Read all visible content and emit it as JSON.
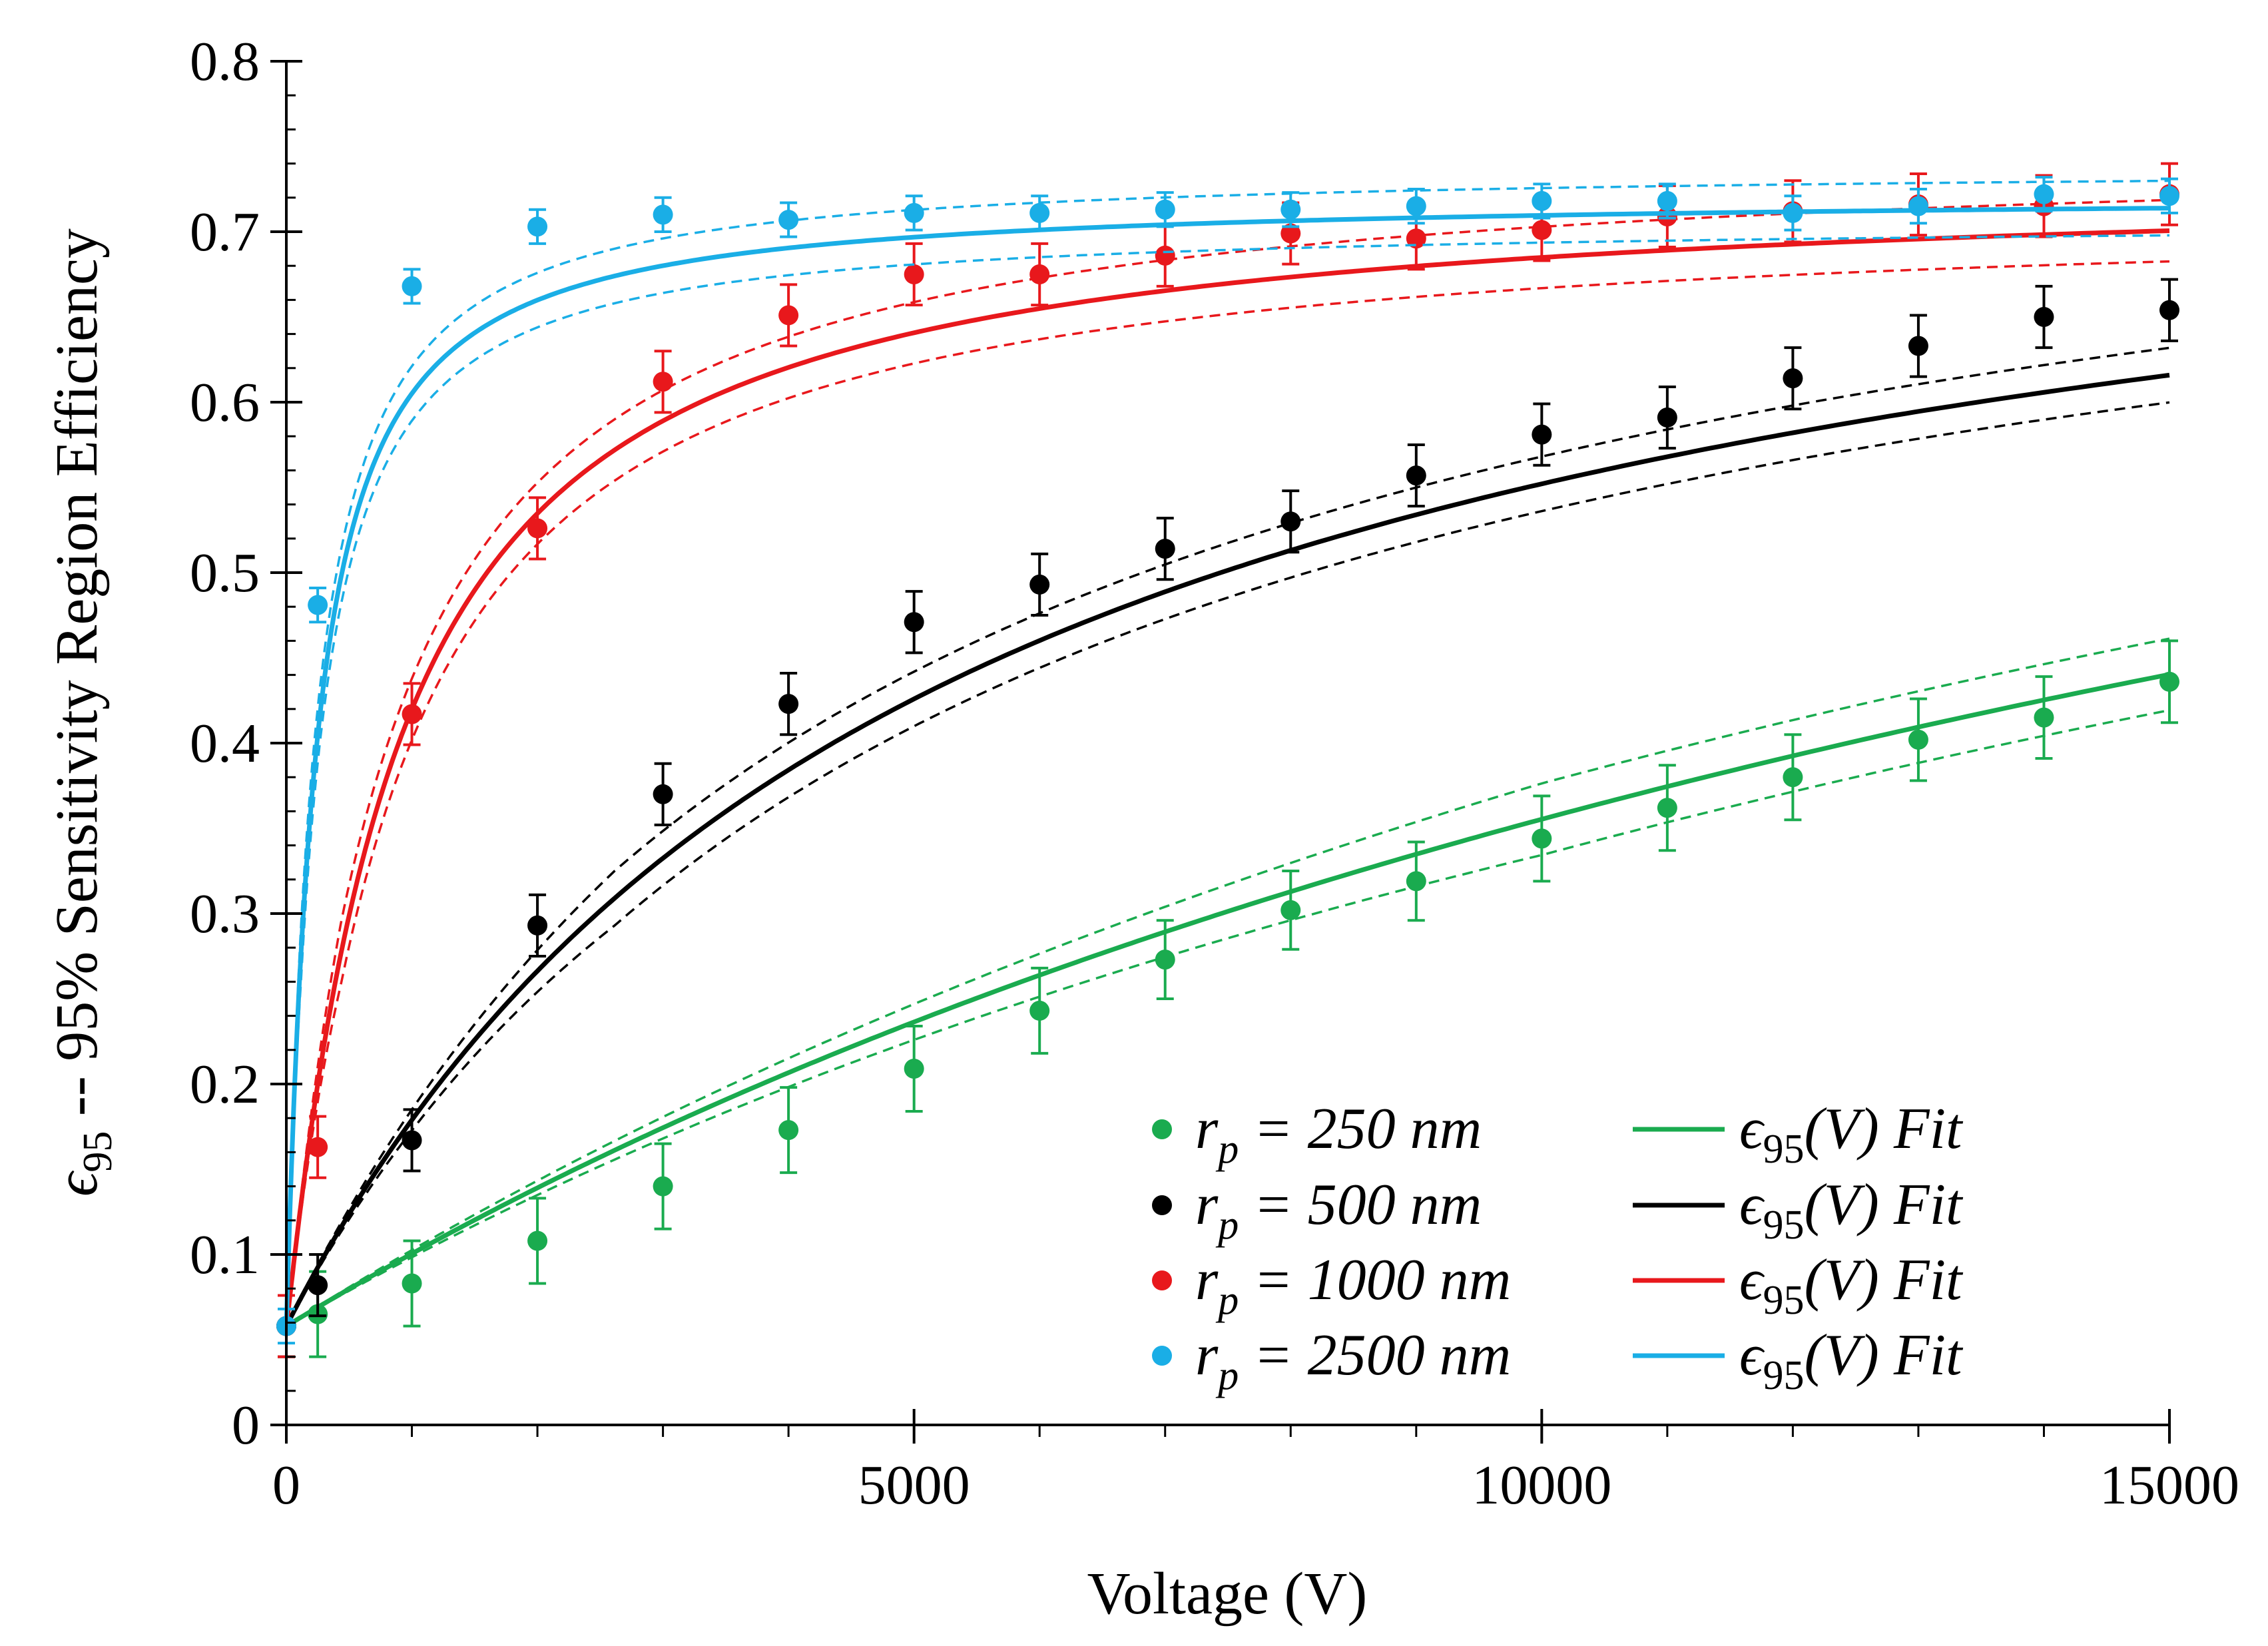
{
  "chart_data": {
    "type": "scatter",
    "title": "",
    "xlabel": "Voltage (V)",
    "ylabel_prefix": "ϵ",
    "ylabel_sub": "95",
    "ylabel_rest": " -- 95% Sensitivity Region Efficiency",
    "xlim": [
      0,
      15000
    ],
    "ylim": [
      0,
      0.8
    ],
    "x_major_ticks": [
      0,
      5000,
      10000,
      15000
    ],
    "x_tick_labels": [
      "0",
      "5000",
      "10000",
      "15000"
    ],
    "x_minor_step": 1000,
    "y_major_ticks": [
      0,
      0.1,
      0.2,
      0.3,
      0.4,
      0.5,
      0.6,
      0.7,
      0.8
    ],
    "y_tick_labels": [
      "0",
      "0.1",
      "0.2",
      "0.3",
      "0.4",
      "0.5",
      "0.6",
      "0.7",
      "0.8"
    ],
    "y_minor_step": 0.02,
    "legend_position": "bottom-right",
    "x": [
      0,
      250,
      1000,
      2000,
      3000,
      4000,
      5000,
      6000,
      7000,
      8000,
      9000,
      10000,
      11000,
      12000,
      13000,
      14000,
      15000
    ],
    "series": [
      {
        "name": "r_p = 250 nm",
        "marker_label": "r",
        "marker_sub": "p",
        "marker_rest": " = 250 nm",
        "fit_label": "ϵ",
        "fit_sub": "95",
        "fit_rest": "(V) Fit",
        "color": "#1aab4f",
        "values": [
          0.058,
          0.065,
          0.083,
          0.108,
          0.14,
          0.173,
          0.209,
          0.243,
          0.273,
          0.302,
          0.319,
          0.344,
          0.362,
          0.38,
          0.402,
          0.415,
          0.436
        ],
        "errors": [
          0.018,
          0.025,
          0.025,
          0.025,
          0.025,
          0.025,
          0.025,
          0.025,
          0.023,
          0.023,
          0.023,
          0.025,
          0.025,
          0.025,
          0.024,
          0.024,
          0.024
        ],
        "fit": {
          "a": 0.058,
          "ymax": 0.95,
          "v0": 20000,
          "n": 1.0
        },
        "fit_band": 0.021
      },
      {
        "name": "r_p = 500 nm",
        "marker_label": "r",
        "marker_sub": "p",
        "marker_rest": " = 500 nm",
        "fit_label": "ϵ",
        "fit_sub": "95",
        "fit_rest": "(V) Fit",
        "color": "#000000",
        "values": [
          0.058,
          0.082,
          0.167,
          0.293,
          0.37,
          0.423,
          0.471,
          0.493,
          0.514,
          0.53,
          0.557,
          0.581,
          0.591,
          0.614,
          0.633,
          0.65,
          0.654
        ],
        "errors": [
          0.018,
          0.018,
          0.018,
          0.018,
          0.018,
          0.018,
          0.018,
          0.018,
          0.018,
          0.018,
          0.018,
          0.018,
          0.018,
          0.018,
          0.018,
          0.018,
          0.018
        ],
        "fit": {
          "a": 0.058,
          "ymax": 0.81,
          "v0": 5220,
          "n": 1.0
        },
        "fit_band": 0.016
      },
      {
        "name": "r_p = 1000 nm",
        "marker_label": "r",
        "marker_sub": "p",
        "marker_rest": " = 1000 nm",
        "fit_label": "ϵ",
        "fit_sub": "95",
        "fit_rest": "(V) Fit",
        "color": "#e8181c",
        "values": [
          0.058,
          0.163,
          0.417,
          0.526,
          0.612,
          0.651,
          0.675,
          0.675,
          0.686,
          0.699,
          0.696,
          0.701,
          0.709,
          0.712,
          0.716,
          0.715,
          0.722
        ],
        "errors": [
          0.018,
          0.018,
          0.018,
          0.018,
          0.018,
          0.018,
          0.018,
          0.018,
          0.018,
          0.018,
          0.018,
          0.018,
          0.018,
          0.018,
          0.018,
          0.018,
          0.018
        ],
        "fit": {
          "a": 0.058,
          "ymax": 0.732,
          "v0": 870,
          "n": 1.06
        },
        "fit_band": 0.018
      },
      {
        "name": "r_p = 2500 nm",
        "marker_label": "r",
        "marker_sub": "p",
        "marker_rest": " = 2500 nm",
        "fit_label": "ϵ",
        "fit_sub": "95",
        "fit_rest": "(V) Fit",
        "color": "#1aaee6",
        "values": [
          0.058,
          0.481,
          0.668,
          0.703,
          0.71,
          0.707,
          0.711,
          0.711,
          0.713,
          0.713,
          0.715,
          0.718,
          0.718,
          0.711,
          0.715,
          0.722,
          0.721
        ],
        "errors": [
          0.01,
          0.01,
          0.01,
          0.01,
          0.01,
          0.01,
          0.01,
          0.01,
          0.01,
          0.01,
          0.01,
          0.01,
          0.01,
          0.01,
          0.01,
          0.01,
          0.01
        ],
        "fit": {
          "a": 0.058,
          "ymax": 0.722,
          "v0": 230,
          "n": 1.05
        },
        "fit_band": 0.016
      }
    ]
  }
}
